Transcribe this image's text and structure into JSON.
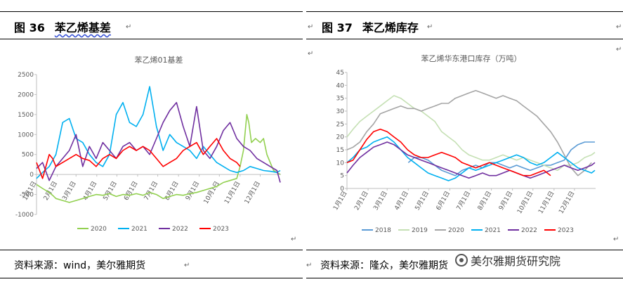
{
  "left": {
    "title_num": "图 36",
    "title_text": "苯乙烯基差",
    "source": "资料来源：wind，美尔雅期货",
    "chart_data": {
      "type": "line",
      "title": "苯乙烯01基差",
      "x_ticks": [
        "1月1日",
        "2月1日",
        "3月1日",
        "4月1日",
        "5月1日",
        "6月1日",
        "7月1日",
        "8月1日",
        "9月1日",
        "10月1日",
        "11月1日",
        "12月1日"
      ],
      "y_ticks": [
        "2500",
        "2000",
        "1500",
        "1000",
        "500",
        "0",
        "-500",
        "-1000"
      ],
      "ylim": [
        -1000,
        2500
      ],
      "xlim": [
        1,
        366
      ],
      "legend_position": "bottom",
      "series": [
        {
          "name": "2020",
          "color": "#92d050",
          "x": [
            1,
            10,
            20,
            25,
            30,
            40,
            50,
            60,
            70,
            80,
            90,
            100,
            110,
            120,
            130,
            140,
            150,
            160,
            170,
            180,
            190,
            200,
            210,
            220,
            230,
            240,
            250,
            260,
            270,
            280,
            290,
            300,
            305,
            310,
            315,
            318,
            322,
            328,
            335,
            340,
            345,
            350,
            355,
            360,
            365
          ],
          "y": [
            -250,
            -350,
            -450,
            -520,
            -600,
            -650,
            -700,
            -650,
            -600,
            -550,
            -500,
            -520,
            -480,
            -550,
            -500,
            -520,
            -480,
            -520,
            -450,
            -500,
            -600,
            -550,
            -500,
            -520,
            -480,
            -450,
            -400,
            -350,
            -300,
            -200,
            -150,
            -100,
            200,
            600,
            1500,
            1300,
            800,
            900,
            800,
            900,
            500,
            300,
            100,
            50,
            0
          ]
        },
        {
          "name": "2021",
          "color": "#00b0f0",
          "x": [
            1,
            10,
            20,
            30,
            40,
            50,
            60,
            70,
            80,
            90,
            100,
            110,
            120,
            130,
            140,
            150,
            160,
            170,
            180,
            190,
            200,
            210,
            220,
            230,
            240,
            250,
            260,
            270,
            280,
            290,
            300,
            310,
            320,
            330,
            340,
            350,
            360,
            365
          ],
          "y": [
            -100,
            50,
            200,
            500,
            1300,
            1400,
            900,
            800,
            500,
            300,
            200,
            500,
            1500,
            1800,
            1300,
            1200,
            1500,
            2200,
            1200,
            600,
            1000,
            800,
            700,
            600,
            400,
            700,
            500,
            300,
            200,
            100,
            50,
            100,
            200,
            150,
            100,
            80,
            50,
            100
          ]
        },
        {
          "name": "2022",
          "color": "#7030a0",
          "x": [
            1,
            10,
            20,
            30,
            40,
            50,
            60,
            70,
            80,
            90,
            100,
            110,
            120,
            130,
            140,
            150,
            160,
            170,
            180,
            190,
            200,
            210,
            220,
            230,
            240,
            250,
            260,
            270,
            280,
            290,
            300,
            310,
            320,
            330,
            340,
            350,
            360,
            365
          ],
          "y": [
            150,
            300,
            -150,
            200,
            400,
            600,
            1000,
            200,
            700,
            400,
            800,
            600,
            400,
            700,
            800,
            600,
            700,
            500,
            900,
            1300,
            1600,
            1800,
            1200,
            700,
            1700,
            600,
            400,
            700,
            1100,
            1300,
            900,
            700,
            600,
            400,
            300,
            200,
            100,
            -200
          ]
        },
        {
          "name": "2023",
          "color": "#ff0000",
          "x": [
            1,
            10,
            20,
            25,
            30,
            40,
            50,
            60,
            70,
            80,
            90,
            100,
            110,
            120,
            130,
            140,
            150,
            160,
            170,
            180,
            190,
            200,
            210,
            220,
            230,
            240,
            250,
            260,
            270,
            280,
            290,
            300,
            305
          ],
          "y": [
            300,
            -100,
            500,
            400,
            200,
            300,
            400,
            500,
            400,
            350,
            200,
            400,
            500,
            400,
            600,
            700,
            600,
            700,
            600,
            400,
            200,
            300,
            400,
            600,
            700,
            800,
            500,
            700,
            900,
            600,
            400,
            300,
            200
          ]
        }
      ]
    }
  },
  "right": {
    "title_num": "图 37",
    "title_text": "苯乙烯库存",
    "source": "资料来源：隆众，美尔雅期货",
    "chart_data": {
      "type": "line",
      "title": "苯乙烯华东港口库存（万吨）",
      "x_ticks": [
        "1月1日",
        "2月1日",
        "3月1日",
        "4月1日",
        "5月1日",
        "6月1日",
        "7月1日",
        "8月1日",
        "9月1日",
        "10月1日",
        "11月1日",
        "12月1日"
      ],
      "y_ticks": [
        "0",
        "5",
        "10",
        "15",
        "20",
        "25",
        "30",
        "35",
        "40",
        "45"
      ],
      "ylim": [
        0,
        45
      ],
      "xlim": [
        1,
        366
      ],
      "legend_position": "bottom",
      "series": [
        {
          "name": "2018",
          "color": "#5b9bd5",
          "x": [
            91,
            100,
            110,
            120,
            130,
            140,
            150,
            160,
            170,
            180,
            190,
            200,
            210,
            220,
            230,
            240,
            250,
            260,
            270,
            280,
            290,
            300,
            310,
            320,
            330,
            340,
            350,
            360,
            365
          ],
          "y": [
            10,
            12,
            12,
            11,
            9,
            7,
            6,
            5,
            7,
            8,
            9,
            8,
            10,
            10,
            9,
            8,
            9,
            8,
            7,
            8,
            9,
            9,
            10,
            11,
            15,
            17,
            18,
            18,
            18
          ]
        },
        {
          "name": "2019",
          "color": "#c5e0b4",
          "x": [
            1,
            10,
            20,
            30,
            40,
            50,
            60,
            70,
            80,
            90,
            100,
            110,
            120,
            130,
            140,
            150,
            160,
            170,
            180,
            190,
            200,
            210,
            220,
            230,
            240,
            250,
            260,
            270,
            280,
            290,
            300,
            310,
            320,
            330,
            340,
            350,
            360,
            365
          ],
          "y": [
            20,
            23,
            26,
            28,
            30,
            32,
            34,
            36,
            35,
            33,
            31,
            30,
            28,
            26,
            22,
            20,
            18,
            15,
            13,
            12,
            11,
            11,
            12,
            13,
            12,
            11,
            12,
            11,
            10,
            9,
            8,
            7,
            9,
            9,
            10,
            12,
            13,
            14
          ]
        },
        {
          "name": "2020",
          "color": "#a5a5a5",
          "x": [
            1,
            10,
            20,
            30,
            40,
            50,
            60,
            70,
            80,
            90,
            100,
            110,
            120,
            130,
            140,
            150,
            160,
            170,
            180,
            190,
            200,
            210,
            220,
            230,
            240,
            250,
            260,
            270,
            280,
            290,
            300,
            310,
            320,
            330,
            340,
            350,
            360
          ],
          "y": [
            15,
            16,
            18,
            22,
            25,
            29,
            30,
            31,
            32,
            31,
            31,
            30,
            31,
            32,
            33,
            33,
            35,
            36,
            37,
            38,
            37,
            36,
            35,
            36,
            35,
            34,
            32,
            30,
            28,
            25,
            22,
            18,
            13,
            8,
            5,
            7,
            10
          ]
        },
        {
          "name": "2021",
          "color": "#00b0f0",
          "x": [
            1,
            10,
            20,
            30,
            40,
            50,
            60,
            70,
            80,
            90,
            100,
            110,
            120,
            130,
            140,
            150,
            160,
            170,
            180,
            190,
            200,
            210,
            220,
            230,
            240,
            250,
            260,
            270,
            280,
            290,
            300,
            310,
            320,
            330,
            340,
            350,
            360,
            365
          ],
          "y": [
            10,
            12,
            15,
            16,
            18,
            19,
            20,
            18,
            15,
            12,
            10,
            8,
            6,
            5,
            4,
            3,
            4,
            6,
            8,
            7,
            8,
            9,
            10,
            11,
            12,
            13,
            12,
            10,
            9,
            10,
            12,
            14,
            12,
            10,
            8,
            7,
            6,
            7
          ]
        },
        {
          "name": "2022",
          "color": "#7030a0",
          "x": [
            1,
            10,
            20,
            30,
            40,
            50,
            60,
            70,
            80,
            90,
            100,
            110,
            120,
            130,
            140,
            150,
            160,
            170,
            180,
            190,
            200,
            210,
            220,
            230,
            240,
            250,
            260,
            270,
            280,
            290,
            300,
            310,
            320,
            330,
            340,
            350,
            360,
            365
          ],
          "y": [
            6,
            9,
            12,
            14,
            16,
            17,
            18,
            17,
            15,
            13,
            12,
            11,
            10,
            9,
            8,
            7,
            6,
            5,
            4,
            5,
            6,
            5,
            5,
            6,
            7,
            6,
            5,
            4,
            5,
            6,
            7,
            8,
            9,
            8,
            7,
            8,
            9,
            10
          ]
        },
        {
          "name": "2023",
          "color": "#ff0000",
          "x": [
            1,
            10,
            20,
            30,
            40,
            50,
            60,
            70,
            80,
            90,
            100,
            110,
            120,
            130,
            140,
            150,
            160,
            170,
            180,
            190,
            200,
            210,
            220,
            230,
            240,
            250,
            260,
            270,
            280,
            290,
            300
          ],
          "y": [
            10,
            11,
            15,
            19,
            22,
            23,
            22,
            20,
            18,
            15,
            13,
            12,
            12,
            13,
            14,
            13,
            12,
            10,
            9,
            8,
            9,
            10,
            9,
            8,
            7,
            6,
            5,
            5,
            6,
            7,
            5
          ]
        }
      ]
    },
    "watermark": "美尔雅期货研究院"
  }
}
